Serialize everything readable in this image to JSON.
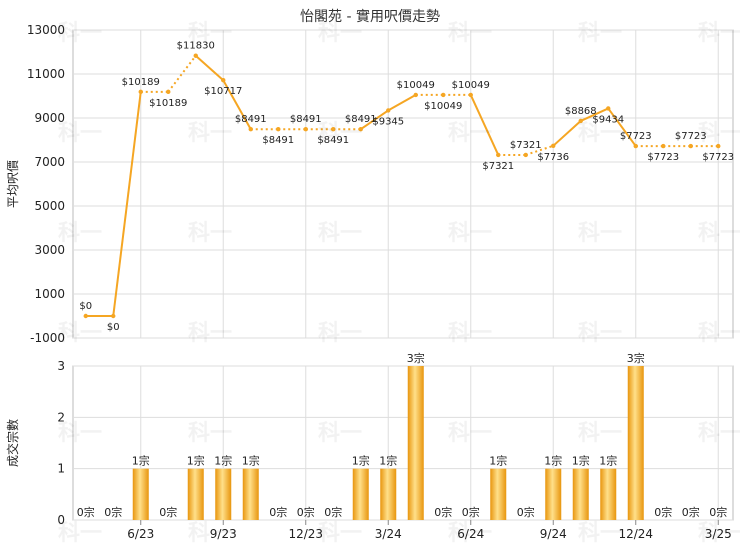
{
  "chart_data": [
    {
      "type": "line",
      "title": "怡閣苑 - 實用呎價走勢",
      "ylabel": "平均呎價",
      "ylim": [
        -1000,
        13000
      ],
      "yticks": [
        -1000,
        1000,
        3000,
        5000,
        7000,
        9000,
        11000,
        13000
      ],
      "x_ticks": [
        "6/23",
        "9/23",
        "12/23",
        "3/24",
        "6/24",
        "9/24",
        "12/24",
        "3/25"
      ],
      "color": "#f5a623",
      "grid": true,
      "series": [
        {
          "values": [
            0,
            0,
            10189,
            10189,
            11830,
            10717,
            8491,
            8491,
            8491,
            8491,
            8491,
            9345,
            10049,
            10049,
            10049,
            7321,
            7321,
            7736,
            8868,
            9434,
            7723,
            7723,
            7723,
            7723
          ],
          "labels": [
            "$0",
            "$0",
            "$10189",
            "$10189",
            "$11830",
            "$10717",
            "$8491",
            "$8491",
            "$8491",
            "$8491",
            "$8491",
            "$9345",
            "$10049",
            "$10049",
            "$10049",
            "$7321",
            "$7321",
            "$7736",
            "$8868",
            "$9434",
            "$7723",
            "$7723",
            "$7723",
            "$7723"
          ],
          "interpolated": [
            false,
            false,
            false,
            true,
            false,
            false,
            false,
            true,
            false,
            true,
            false,
            false,
            false,
            true,
            false,
            false,
            true,
            false,
            false,
            false,
            false,
            true,
            false,
            true
          ]
        }
      ]
    },
    {
      "type": "bar",
      "ylabel": "成交宗數",
      "ylim": [
        0,
        3
      ],
      "yticks": [
        0,
        1,
        2,
        3
      ],
      "x_ticks": [
        "6/23",
        "9/23",
        "12/23",
        "3/24",
        "6/24",
        "9/24",
        "12/24",
        "3/25"
      ],
      "color": "#f5a623",
      "grid": true,
      "series": [
        {
          "values": [
            0,
            0,
            1,
            0,
            1,
            1,
            1,
            0,
            0,
            0,
            1,
            1,
            3,
            0,
            0,
            1,
            0,
            1,
            1,
            1,
            3,
            0,
            0,
            0
          ],
          "labels": [
            "0宗",
            "0宗",
            "1宗",
            "0宗",
            "1宗",
            "1宗",
            "1宗",
            "0宗",
            "0宗",
            "0宗",
            "1宗",
            "1宗",
            "3宗",
            "0宗",
            "0宗",
            "1宗",
            "0宗",
            "1宗",
            "1宗",
            "1宗",
            "3宗",
            "0宗",
            "0宗",
            "0宗"
          ]
        }
      ]
    }
  ],
  "watermark": "科一"
}
